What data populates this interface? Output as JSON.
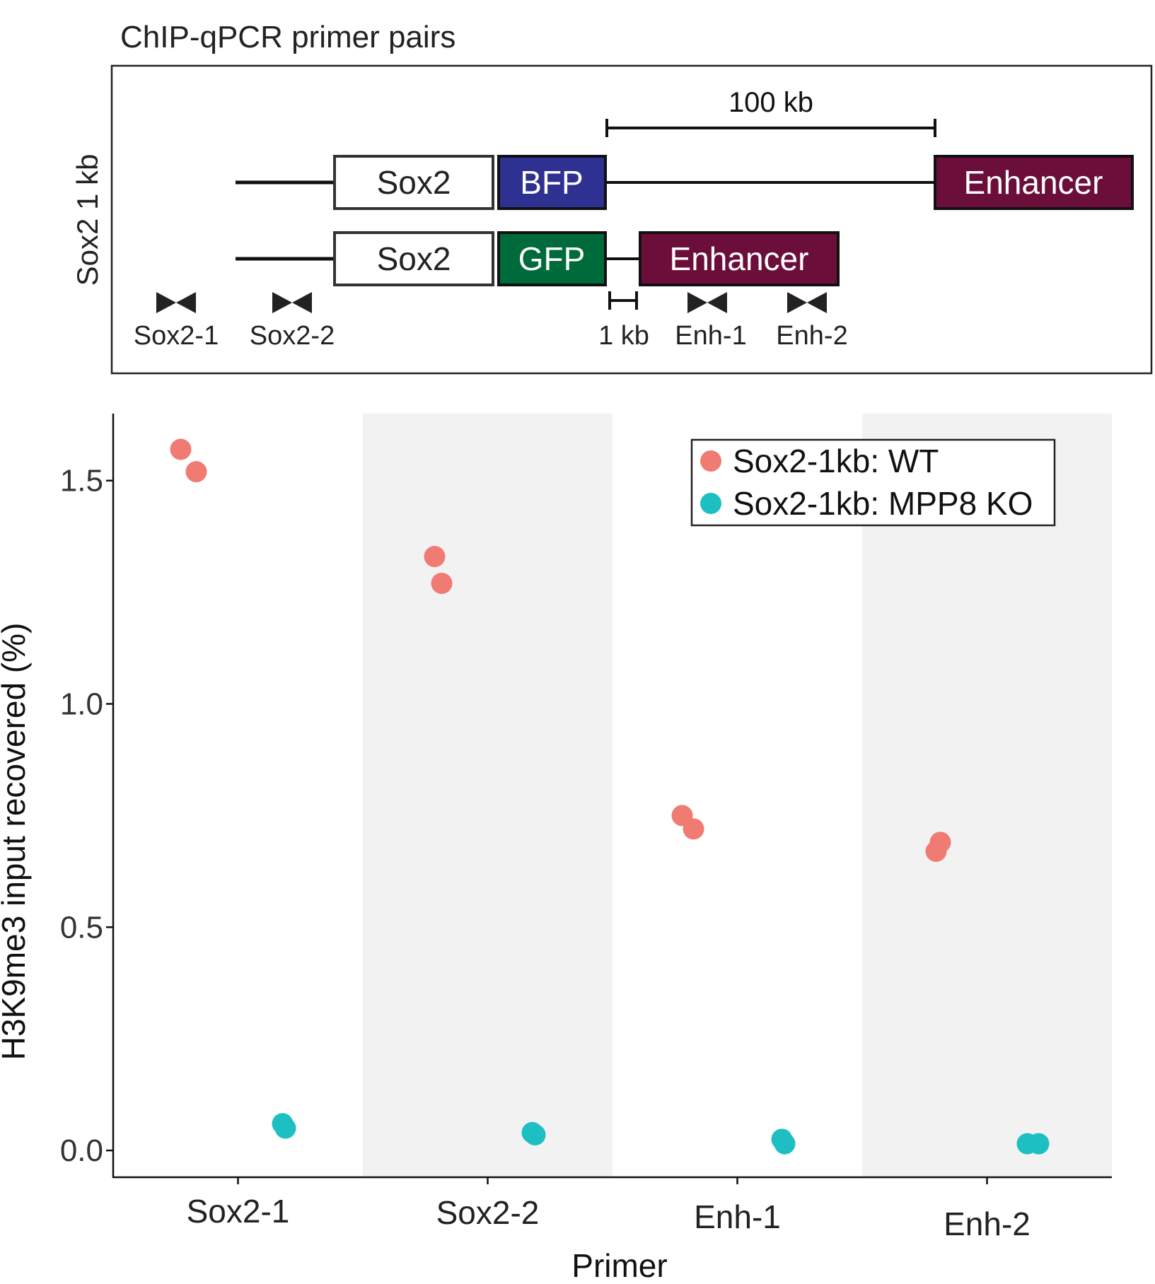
{
  "schematic": {
    "title": "ChIP-qPCR primer pairs",
    "side_label": "Sox2 1 kb",
    "scale_100kb": "100 kb",
    "scale_1kb": "1 kb",
    "construct_top": {
      "gene": "Sox2",
      "reporter": "BFP",
      "element": "Enhancer"
    },
    "construct_bottom": {
      "gene": "Sox2",
      "reporter": "GFP",
      "element": "Enhancer"
    },
    "primers": [
      "Sox2-1",
      "Sox2-2",
      "Enh-1",
      "Enh-2"
    ],
    "colors": {
      "bfp": "#2e3192",
      "gfp": "#006b3a",
      "enhancer": "#6b0f3a"
    }
  },
  "chart_data": {
    "type": "scatter",
    "xlabel": "Primer",
    "ylabel": "H3K9me3 input recovered (%)",
    "categories": [
      "Sox2-1",
      "Sox2-2",
      "Enh-1",
      "Enh-2"
    ],
    "ylim": [
      -0.06,
      1.65
    ],
    "yticks": [
      0.0,
      0.5,
      1.0,
      1.5
    ],
    "ytick_labels": [
      "0.0",
      "0.5",
      "1.0",
      "1.5"
    ],
    "shaded_categories": [
      "Sox2-2",
      "Enh-2"
    ],
    "legend_position": "top-right",
    "series": [
      {
        "name": "Sox2-1kb: WT",
        "color": "#f07b72",
        "points": [
          {
            "category": "Sox2-1",
            "y": 1.57
          },
          {
            "category": "Sox2-1",
            "y": 1.52
          },
          {
            "category": "Sox2-2",
            "y": 1.33
          },
          {
            "category": "Sox2-2",
            "y": 1.27
          },
          {
            "category": "Enh-1",
            "y": 0.75
          },
          {
            "category": "Enh-1",
            "y": 0.72
          },
          {
            "category": "Enh-2",
            "y": 0.69
          },
          {
            "category": "Enh-2",
            "y": 0.67
          }
        ]
      },
      {
        "name": "Sox2-1kb: MPP8 KO",
        "color": "#1dbfc2",
        "points": [
          {
            "category": "Sox2-1",
            "y": 0.06
          },
          {
            "category": "Sox2-1",
            "y": 0.05
          },
          {
            "category": "Sox2-2",
            "y": 0.04
          },
          {
            "category": "Sox2-2",
            "y": 0.035
          },
          {
            "category": "Enh-1",
            "y": 0.025
          },
          {
            "category": "Enh-1",
            "y": 0.015
          },
          {
            "category": "Enh-2",
            "y": 0.015
          },
          {
            "category": "Enh-2",
            "y": 0.015
          }
        ]
      }
    ]
  }
}
